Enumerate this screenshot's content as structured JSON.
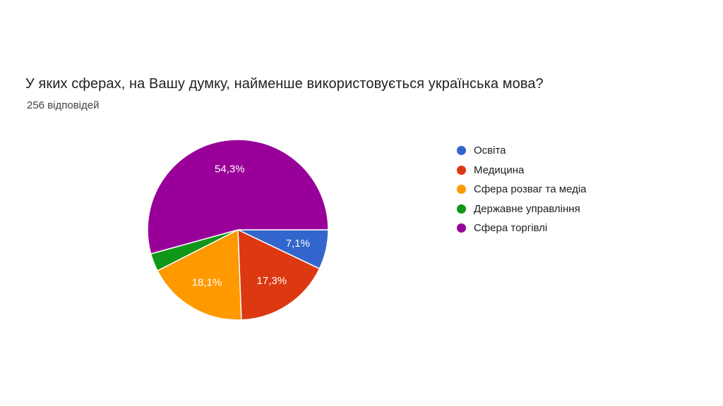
{
  "header": {
    "title": "У яких сферах, на Вашу думку, найменше використовується українська мова?",
    "subtitle": "256 відповідей"
  },
  "chart_data": {
    "type": "pie",
    "title": "У яких сферах, на Вашу думку, найменше використовується українська мова?",
    "subtitle": "256 відповідей",
    "categories": [
      "Освіта",
      "Медицина",
      "Сфера розваг та медіа",
      "Державне управління",
      "Сфера торгівлі"
    ],
    "values": [
      7.1,
      17.3,
      18.1,
      3.2,
      54.3
    ],
    "slice_labels": [
      "7,1%",
      "17,3%",
      "18,1%",
      "",
      "54,3%"
    ],
    "colors": [
      "#3366cc",
      "#dc3912",
      "#ff9900",
      "#109618",
      "#990099"
    ],
    "legend_position": "right",
    "start_angle_deg": 90,
    "slice_border_color": "#ffffff",
    "label_color": "#ffffff",
    "min_label_pct": 5,
    "label_radius_ratio": 0.68
  }
}
